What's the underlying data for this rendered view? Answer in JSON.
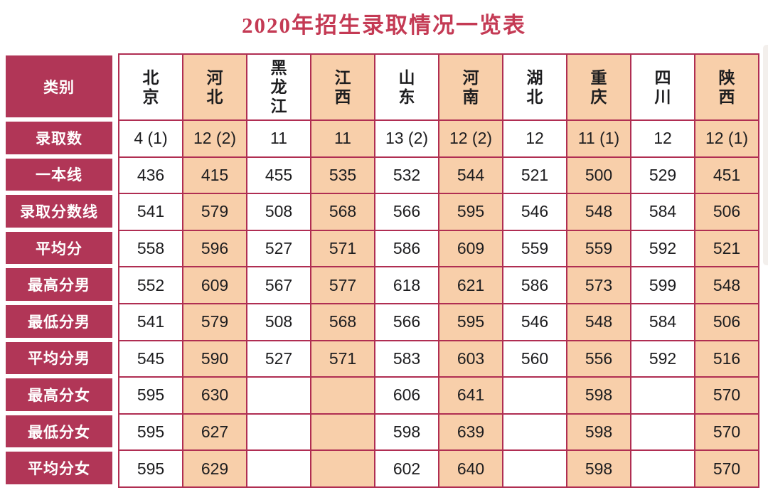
{
  "title": "2020年招生录取情况一览表",
  "colors": {
    "label_bg": "#b13657",
    "border": "#b02e52",
    "alt_column_bg": "#f8cfaa",
    "title_text": "#c43a54",
    "body_text": "#1d1d1f",
    "label_text": "#ffffff"
  },
  "chart_data": {
    "type": "table",
    "title": "2020年招生录取情况一览表",
    "corner_label": "类别",
    "columns": [
      "北京",
      "河北",
      "黑龙江",
      "江西",
      "山东",
      "河南",
      "湖北",
      "重庆",
      "四川",
      "陕西"
    ],
    "rows": [
      {
        "label": "录取数",
        "values": [
          "4 (1)",
          "12 (2)",
          "11",
          "11",
          "13 (2)",
          "12 (2)",
          "12",
          "11 (1)",
          "12",
          "12 (1)"
        ]
      },
      {
        "label": "一本线",
        "values": [
          "436",
          "415",
          "455",
          "535",
          "532",
          "544",
          "521",
          "500",
          "529",
          "451"
        ]
      },
      {
        "label": "录取分数线",
        "values": [
          "541",
          "579",
          "508",
          "568",
          "566",
          "595",
          "546",
          "548",
          "584",
          "506"
        ]
      },
      {
        "label": "平均分",
        "values": [
          "558",
          "596",
          "527",
          "571",
          "586",
          "609",
          "559",
          "559",
          "592",
          "521"
        ]
      },
      {
        "label": "最高分男",
        "values": [
          "552",
          "609",
          "567",
          "577",
          "618",
          "621",
          "586",
          "573",
          "599",
          "548"
        ]
      },
      {
        "label": "最低分男",
        "values": [
          "541",
          "579",
          "508",
          "568",
          "566",
          "595",
          "546",
          "548",
          "584",
          "506"
        ]
      },
      {
        "label": "平均分男",
        "values": [
          "545",
          "590",
          "527",
          "571",
          "583",
          "603",
          "560",
          "556",
          "592",
          "516"
        ]
      },
      {
        "label": "最高分女",
        "values": [
          "595",
          "630",
          "",
          "",
          "606",
          "641",
          "",
          "598",
          "",
          "570"
        ]
      },
      {
        "label": "最低分女",
        "values": [
          "595",
          "627",
          "",
          "",
          "598",
          "639",
          "",
          "598",
          "",
          "570"
        ]
      },
      {
        "label": "平均分女",
        "values": [
          "595",
          "629",
          "",
          "",
          "602",
          "640",
          "",
          "598",
          "",
          "570"
        ]
      }
    ]
  }
}
